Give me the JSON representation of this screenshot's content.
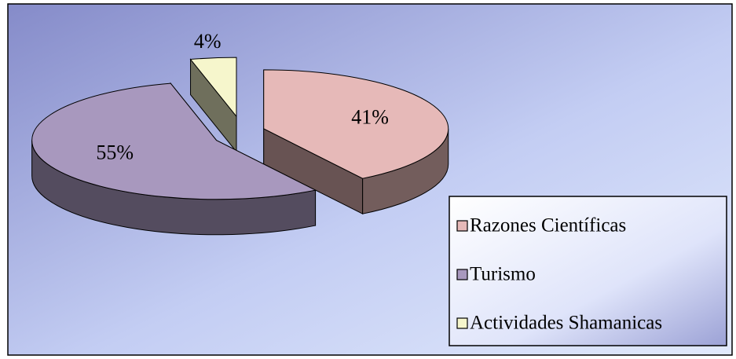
{
  "chart_data": {
    "type": "pie3d",
    "categories": [
      "Razones Científicas",
      "Turismo",
      "Actividades Shamanicas"
    ],
    "values": [
      41,
      55,
      4
    ],
    "value_labels": [
      "41%",
      "55%",
      "4%"
    ],
    "colors": [
      "#e6b9b8",
      "#a898be",
      "#f6f6cc"
    ]
  }
}
